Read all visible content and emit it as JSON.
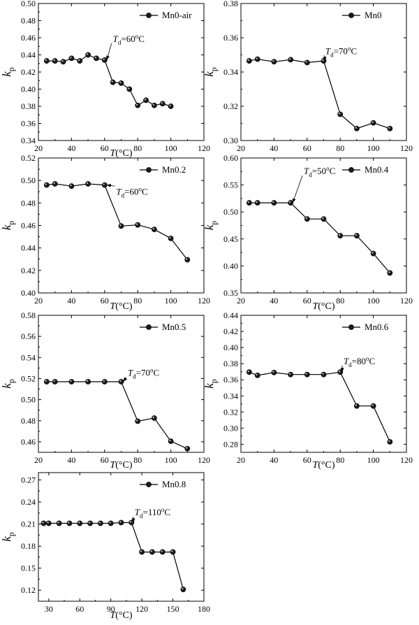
{
  "chart_data": [
    {
      "type": "line",
      "legend": "Mn0-air",
      "xlabel": "T(°C)",
      "ylabel": "kp",
      "xlim": [
        20,
        120
      ],
      "ylim": [
        0.34,
        0.5
      ],
      "xticks": [
        20,
        40,
        60,
        80,
        100,
        120
      ],
      "yticks": [
        0.34,
        0.36,
        0.38,
        0.4,
        0.42,
        0.44,
        0.46,
        0.48,
        0.5
      ],
      "ydec": 2,
      "x": [
        25,
        30,
        35,
        40,
        45,
        50,
        55,
        60,
        65,
        70,
        75,
        80,
        85,
        90,
        95,
        100
      ],
      "y": [
        0.433,
        0.433,
        0.432,
        0.436,
        0.433,
        0.44,
        0.436,
        0.434,
        0.408,
        0.407,
        0.4,
        0.381,
        0.387,
        0.381,
        0.383,
        0.38
      ],
      "annotation": {
        "prefix": "T",
        "sub": "d",
        "value": "=60",
        "unit": "C",
        "x": 60,
        "y": 0.434,
        "tx": 65,
        "ty": 0.455
      }
    },
    {
      "type": "line",
      "legend": "Mn0",
      "xlabel": "",
      "ylabel": "kp",
      "xlim": [
        20,
        120
      ],
      "ylim": [
        0.3,
        0.38
      ],
      "xticks": [
        20,
        40,
        60,
        80,
        100,
        120
      ],
      "yticks": [
        0.3,
        0.32,
        0.34,
        0.36,
        0.38
      ],
      "ydec": 2,
      "x": [
        25,
        30,
        40,
        50,
        60,
        70,
        80,
        90,
        100,
        110
      ],
      "y": [
        0.3465,
        0.3475,
        0.346,
        0.3472,
        0.3455,
        0.3465,
        0.3153,
        0.307,
        0.3103,
        0.307
      ],
      "annotation": {
        "prefix": "T",
        "sub": "d",
        "value": "=70",
        "unit": "C",
        "x": 70,
        "y": 0.3465,
        "tx": 71,
        "ty": 0.3505
      }
    },
    {
      "type": "line",
      "legend": "Mn0.2",
      "xlabel": "T(°C)",
      "ylabel": "kp",
      "xlim": [
        20,
        120
      ],
      "ylim": [
        0.4,
        0.52
      ],
      "xticks": [
        20,
        40,
        60,
        80,
        100,
        120
      ],
      "yticks": [
        0.4,
        0.42,
        0.44,
        0.46,
        0.48,
        0.5,
        0.52
      ],
      "ydec": 2,
      "x": [
        25,
        30,
        40,
        50,
        60,
        70,
        80,
        90,
        100,
        110
      ],
      "y": [
        0.496,
        0.497,
        0.495,
        0.497,
        0.496,
        0.4595,
        0.4605,
        0.4565,
        0.4485,
        0.4295
      ],
      "annotation": {
        "prefix": "T",
        "sub": "d",
        "value": "=60",
        "unit": "C",
        "x": 60,
        "y": 0.496,
        "tx": 67,
        "ty": 0.4875
      }
    },
    {
      "type": "line",
      "legend": "Mn0.4",
      "xlabel": "T(°C)",
      "ylabel": "kp",
      "xlim": [
        20,
        120
      ],
      "ylim": [
        0.35,
        0.6
      ],
      "xticks": [
        20,
        40,
        60,
        80,
        100,
        120
      ],
      "yticks": [
        0.35,
        0.4,
        0.45,
        0.5,
        0.55,
        0.6
      ],
      "ydec": 2,
      "x": [
        25,
        30,
        40,
        50,
        60,
        70,
        80,
        90,
        100,
        110
      ],
      "y": [
        0.517,
        0.517,
        0.517,
        0.517,
        0.487,
        0.487,
        0.456,
        0.456,
        0.423,
        0.387
      ],
      "annotation": {
        "prefix": "T",
        "sub": "d",
        "value": "=50",
        "unit": "C",
        "x": 50,
        "y": 0.517,
        "tx": 58,
        "ty": 0.57
      }
    },
    {
      "type": "line",
      "legend": "Mn0.5",
      "xlabel": "T(°C)",
      "ylabel": "kp",
      "xlim": [
        20,
        120
      ],
      "ylim": [
        0.45,
        0.58
      ],
      "xticks": [
        20,
        40,
        60,
        80,
        100,
        120
      ],
      "yticks": [
        0.46,
        0.48,
        0.5,
        0.52,
        0.54,
        0.56,
        0.58
      ],
      "ydec": 2,
      "x": [
        25,
        30,
        40,
        50,
        60,
        70,
        80,
        90,
        100,
        110
      ],
      "y": [
        0.517,
        0.517,
        0.517,
        0.517,
        0.517,
        0.517,
        0.4795,
        0.4825,
        0.4605,
        0.4535
      ],
      "annotation": {
        "prefix": "T",
        "sub": "d",
        "value": "=70",
        "unit": "C",
        "x": 70,
        "y": 0.517,
        "tx": 74,
        "ty": 0.5225
      }
    },
    {
      "type": "line",
      "legend": "Mn0.6",
      "xlabel": "T(°C)",
      "ylabel": "kp",
      "xlim": [
        20,
        120
      ],
      "ylim": [
        0.27,
        0.44
      ],
      "xticks": [
        20,
        40,
        60,
        80,
        100,
        120
      ],
      "yticks": [
        0.28,
        0.3,
        0.32,
        0.34,
        0.36,
        0.38,
        0.4,
        0.42,
        0.44
      ],
      "ydec": 2,
      "x": [
        25,
        30,
        40,
        50,
        60,
        70,
        80,
        90,
        100,
        110
      ],
      "y": [
        0.3695,
        0.3655,
        0.369,
        0.3665,
        0.3665,
        0.3665,
        0.3695,
        0.3275,
        0.3275,
        0.283
      ],
      "annotation": {
        "prefix": "T",
        "sub": "d",
        "value": "=80",
        "unit": "C",
        "x": 80,
        "y": 0.3695,
        "tx": 82,
        "ty": 0.3795
      }
    },
    {
      "type": "line",
      "legend": "Mn0.8",
      "xlabel": "T(°C)",
      "ylabel": "kp",
      "xlim": [
        20,
        180
      ],
      "ylim": [
        0.105,
        0.28
      ],
      "xticks": [
        30,
        60,
        90,
        120,
        150,
        180
      ],
      "yticks": [
        0.12,
        0.15,
        0.18,
        0.21,
        0.24,
        0.27
      ],
      "ydec": 2,
      "x": [
        25,
        30,
        40,
        50,
        60,
        70,
        80,
        90,
        100,
        110,
        120,
        130,
        140,
        150,
        160
      ],
      "y": [
        0.211,
        0.211,
        0.211,
        0.211,
        0.211,
        0.211,
        0.211,
        0.211,
        0.212,
        0.212,
        0.172,
        0.172,
        0.172,
        0.172,
        0.121
      ],
      "annotation": {
        "prefix": "T",
        "sub": "d",
        "value": "=110",
        "unit": "C",
        "x": 110,
        "y": 0.212,
        "tx": 113,
        "ty": 0.222
      }
    }
  ]
}
